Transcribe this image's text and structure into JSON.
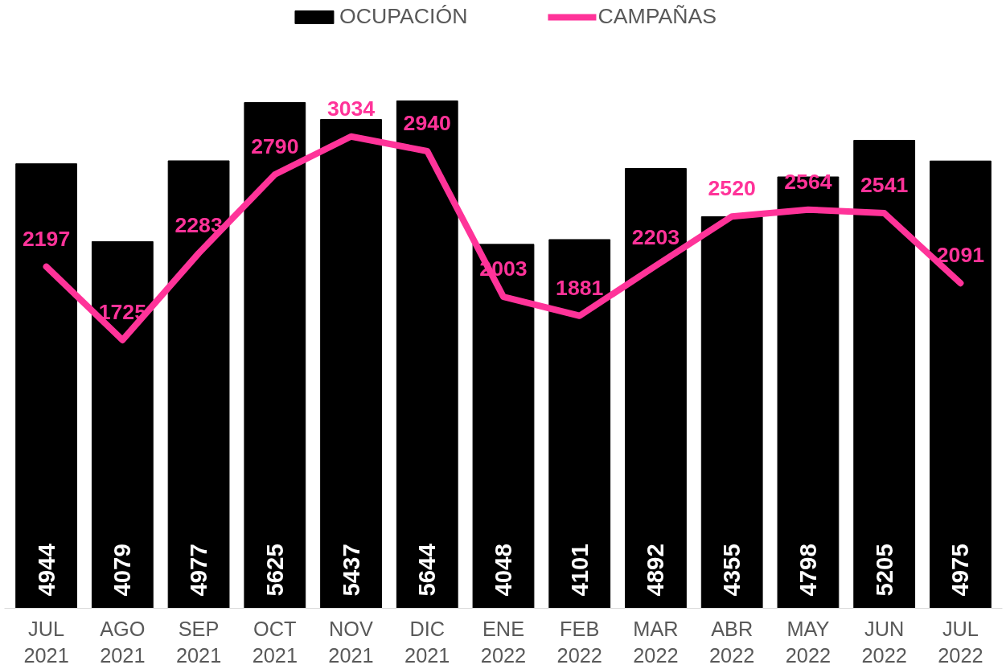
{
  "chart_data": {
    "type": "bar",
    "categories": [
      "JUL\n2021",
      "AGO\n2021",
      "SEP\n2021",
      "OCT\n2021",
      "NOV\n2021",
      "DIC\n2021",
      "ENE\n2022",
      "FEB\n2022",
      "MAR\n2022",
      "ABR\n2022",
      "MAY\n2022",
      "JUN\n2022",
      "JUL\n2022"
    ],
    "series": [
      {
        "name": "OCUPACIÓN",
        "color": "#000000",
        "values": [
          4944,
          4079,
          4977,
          5625,
          5437,
          5644,
          4048,
          4101,
          4892,
          4355,
          4798,
          5205,
          4975
        ]
      },
      {
        "name": "CAMPAÑAS",
        "type": "line",
        "axis": "y2",
        "color": "#ff3399",
        "values": [
          2197,
          1725,
          2283,
          2790,
          3034,
          2940,
          2003,
          1881,
          2203,
          2520,
          2564,
          2541,
          2091
        ]
      }
    ],
    "data_labels": true,
    "legend": "top",
    "grid": false,
    "tick_labels": "x"
  }
}
